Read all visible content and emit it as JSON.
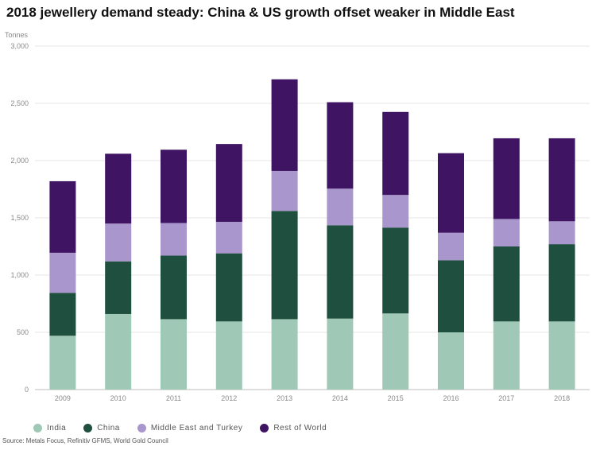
{
  "chart_data": {
    "type": "bar",
    "stacked": true,
    "title": "2018 jewellery demand steady: China & US growth offset weaker in Middle East",
    "ylabel": "Tonnes",
    "ylim": [
      0,
      3000
    ],
    "yticks": [
      "0",
      "500",
      "1,000",
      "1,500",
      "2,000",
      "2,500",
      "3,000"
    ],
    "ytick_values": [
      0,
      500,
      1000,
      1500,
      2000,
      2500,
      3000
    ],
    "grid": true,
    "legend_position": "bottom",
    "categories": [
      "2009",
      "2010",
      "2011",
      "2012",
      "2013",
      "2014",
      "2015",
      "2016",
      "2017",
      "2018"
    ],
    "series": [
      {
        "name": "India",
        "color": "#9fc8b6",
        "values": [
          470,
          660,
          615,
          595,
          615,
          620,
          665,
          500,
          595,
          595
        ]
      },
      {
        "name": "China",
        "color": "#1f4f3e",
        "values": [
          375,
          460,
          555,
          595,
          945,
          815,
          750,
          630,
          655,
          675
        ]
      },
      {
        "name": "Middle East and Turkey",
        "color": "#a896cc",
        "values": [
          350,
          330,
          285,
          275,
          350,
          320,
          285,
          240,
          240,
          200
        ]
      },
      {
        "name": "Rest of World",
        "color": "#3f1463",
        "values": [
          625,
          610,
          640,
          680,
          800,
          755,
          725,
          695,
          705,
          725
        ]
      }
    ],
    "source": "Source: Metals Focus, Refinitiv GFMS, World Gold Council"
  }
}
